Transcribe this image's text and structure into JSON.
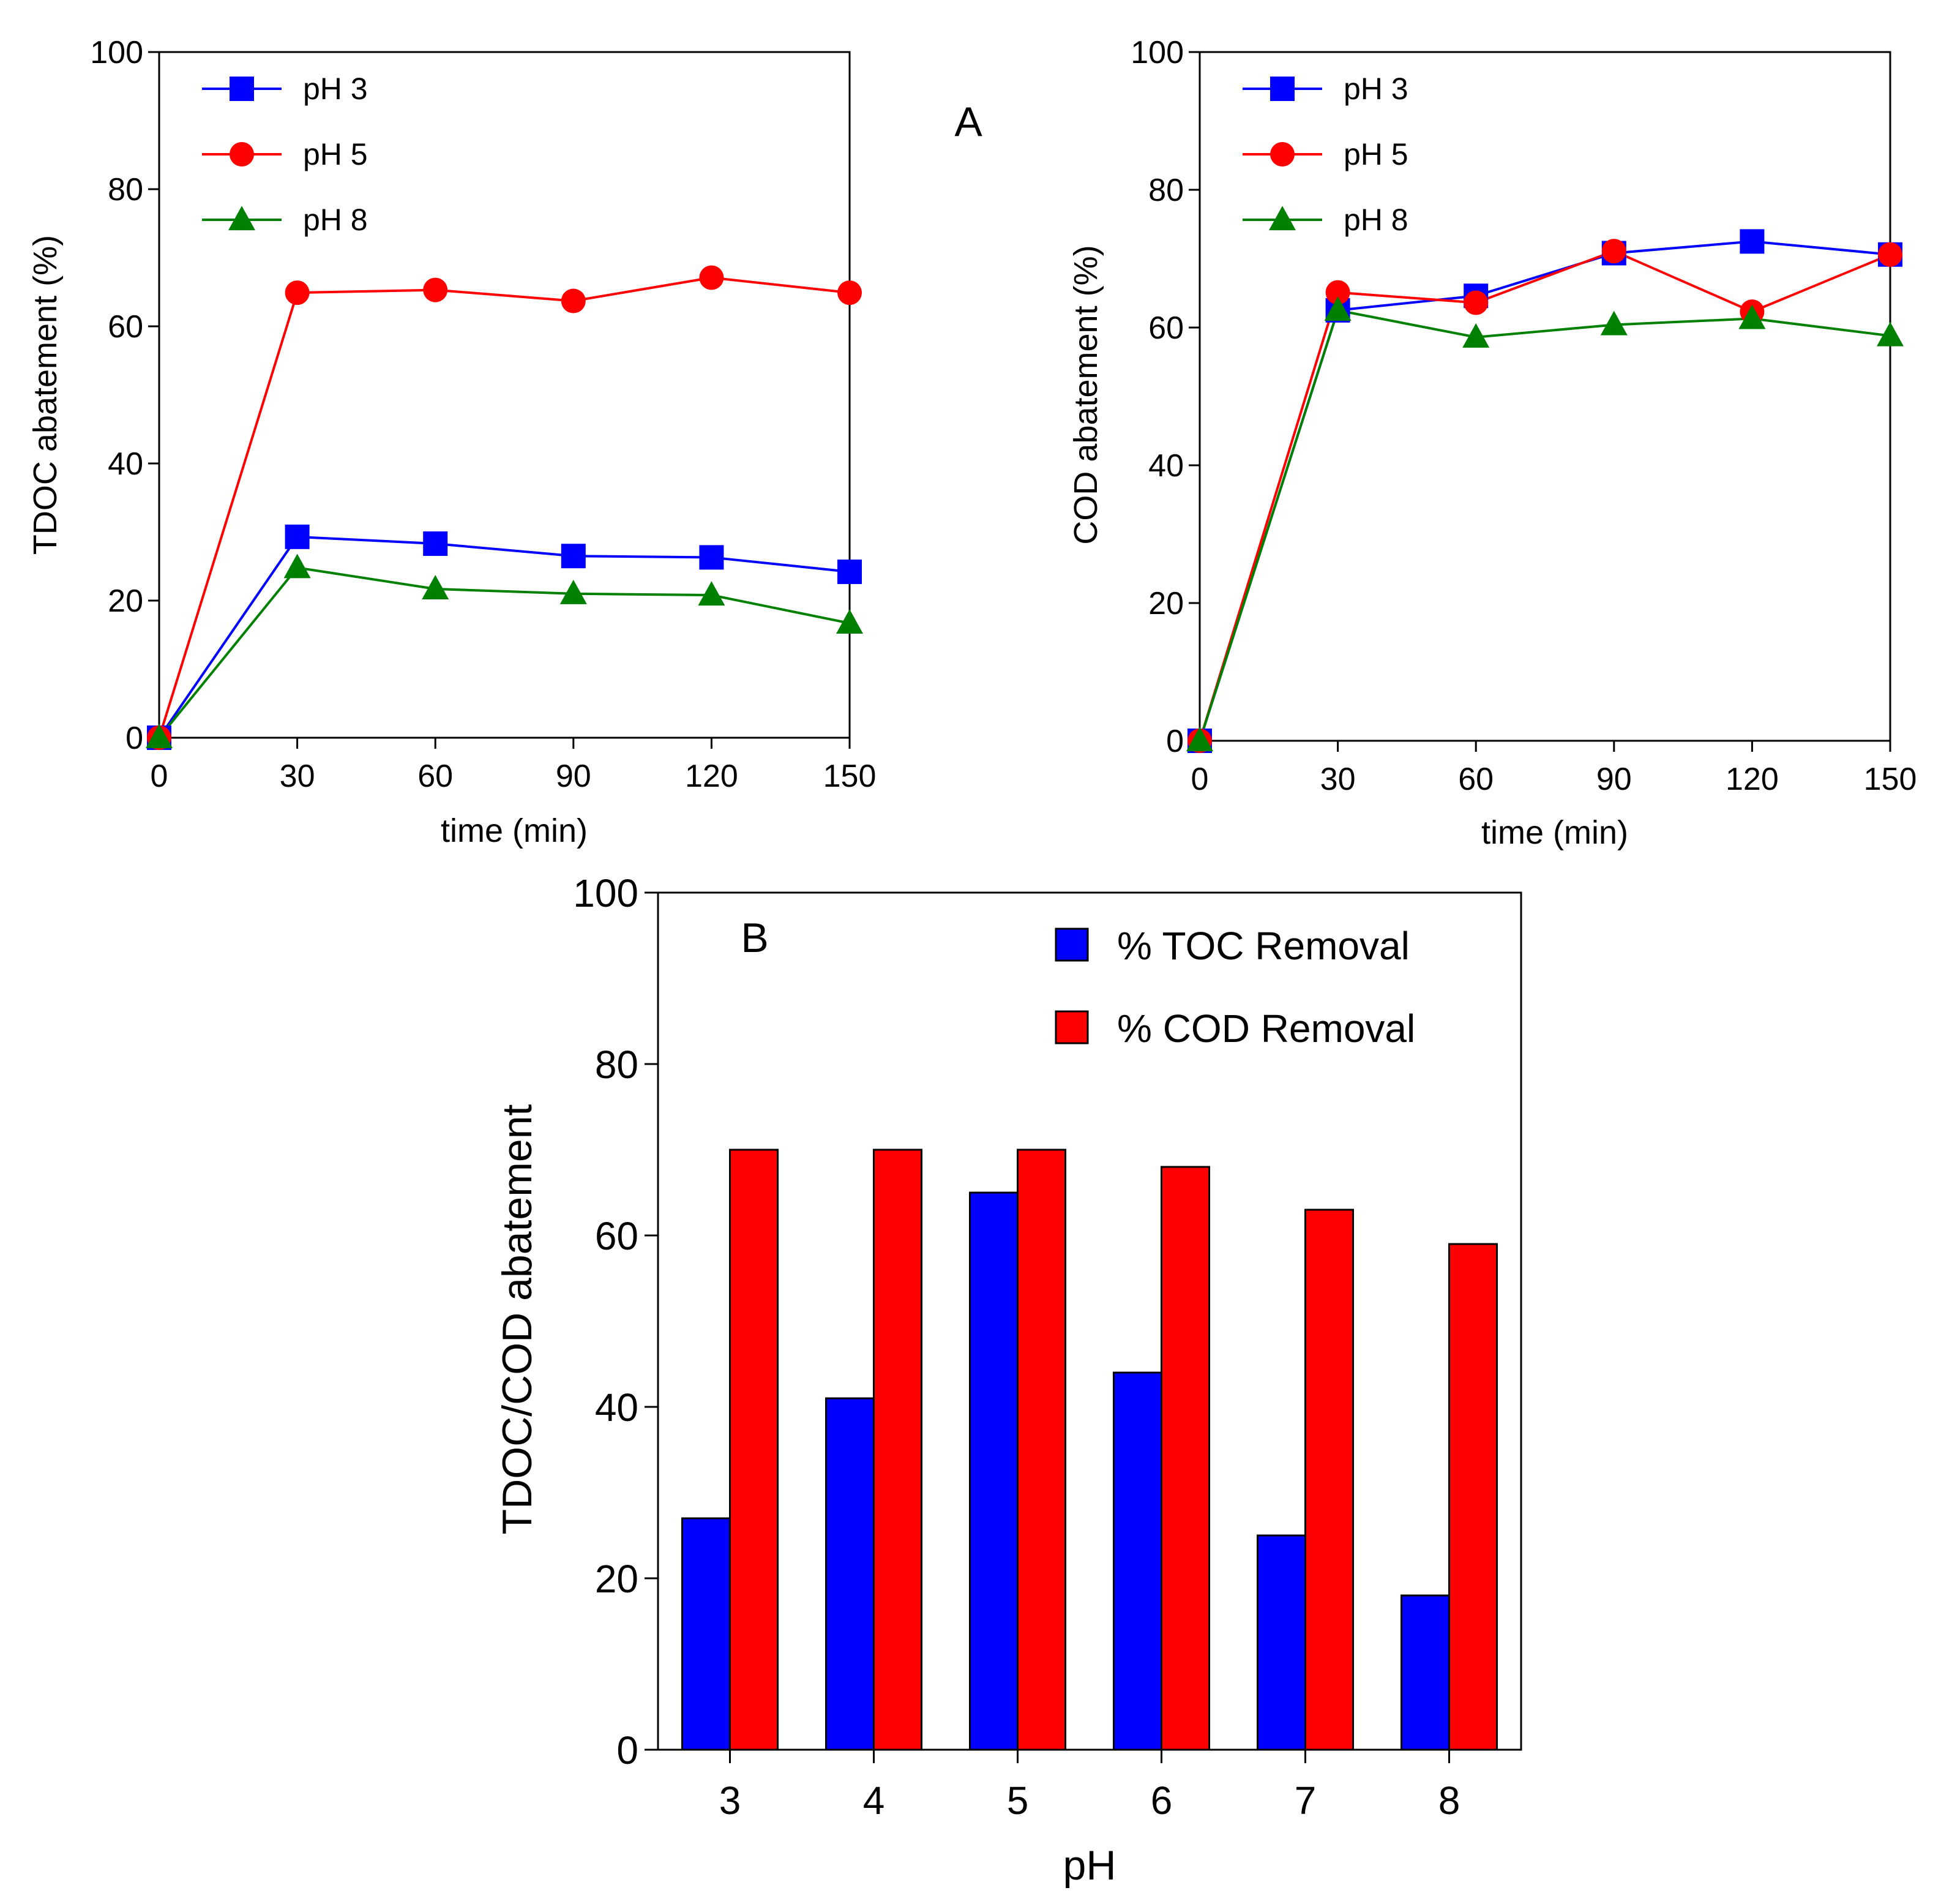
{
  "colors": {
    "pH 3": "#0000ff",
    "pH 5": "#ff0000",
    "pH 8": "#008000",
    "toc": "#0000ff",
    "cod": "#ff0000"
  },
  "chart_data": [
    {
      "type": "line",
      "panel": "A",
      "title": "",
      "panel_label": "A",
      "xlabel": "time (min)",
      "ylabel": "TDOC abatement (%)",
      "x": [
        0,
        30,
        60,
        90,
        120,
        150
      ],
      "xticks": [
        "0",
        "30",
        "60",
        "90",
        "120",
        "150"
      ],
      "yticks": [
        "0",
        "20",
        "40",
        "60",
        "80",
        "100"
      ],
      "xlim": [
        0,
        150
      ],
      "ylim": [
        0,
        100
      ],
      "legend_position": "top-left",
      "series": [
        {
          "name": "pH 3",
          "marker": "square",
          "values": [
            0,
            29.3,
            28.3,
            26.5,
            26.3,
            24.2
          ]
        },
        {
          "name": "pH 5",
          "marker": "circle",
          "values": [
            0,
            64.9,
            65.3,
            63.7,
            67.1,
            64.9
          ]
        },
        {
          "name": "pH 8",
          "marker": "triangle",
          "values": [
            0,
            24.8,
            21.7,
            21.0,
            20.8,
            16.7
          ]
        }
      ]
    },
    {
      "type": "line",
      "panel": "A",
      "title": "",
      "xlabel": "time (min)",
      "ylabel": "COD abatement (%)",
      "x": [
        0,
        30,
        60,
        90,
        120,
        150
      ],
      "xticks": [
        "0",
        "30",
        "60",
        "90",
        "120",
        "150"
      ],
      "yticks": [
        "0",
        "20",
        "40",
        "60",
        "80",
        "100"
      ],
      "xlim": [
        0,
        150
      ],
      "ylim": [
        0,
        100
      ],
      "legend_position": "top-left",
      "series": [
        {
          "name": "pH 3",
          "marker": "square",
          "values": [
            0,
            62.5,
            64.6,
            70.8,
            72.5,
            70.6
          ]
        },
        {
          "name": "pH 5",
          "marker": "circle",
          "values": [
            0,
            65.1,
            63.6,
            71.1,
            62.3,
            70.6
          ]
        },
        {
          "name": "pH 8",
          "marker": "triangle",
          "values": [
            0,
            62.5,
            58.6,
            60.4,
            61.3,
            58.8
          ]
        }
      ]
    },
    {
      "type": "bar",
      "panel": "B",
      "title": "",
      "panel_label": "B",
      "xlabel": "pH",
      "ylabel": "TDOC/COD abatement",
      "categories": [
        "3",
        "4",
        "5",
        "6",
        "7",
        "8"
      ],
      "yticks": [
        "0",
        "20",
        "40",
        "60",
        "80",
        "100"
      ],
      "ylim": [
        0,
        100
      ],
      "legend_position": "top-right",
      "series": [
        {
          "name": "% TOC Removal",
          "values": [
            27,
            41,
            65,
            44,
            25,
            18
          ]
        },
        {
          "name": "% COD Removal",
          "values": [
            70,
            70,
            70,
            68,
            63,
            59
          ]
        }
      ]
    }
  ]
}
